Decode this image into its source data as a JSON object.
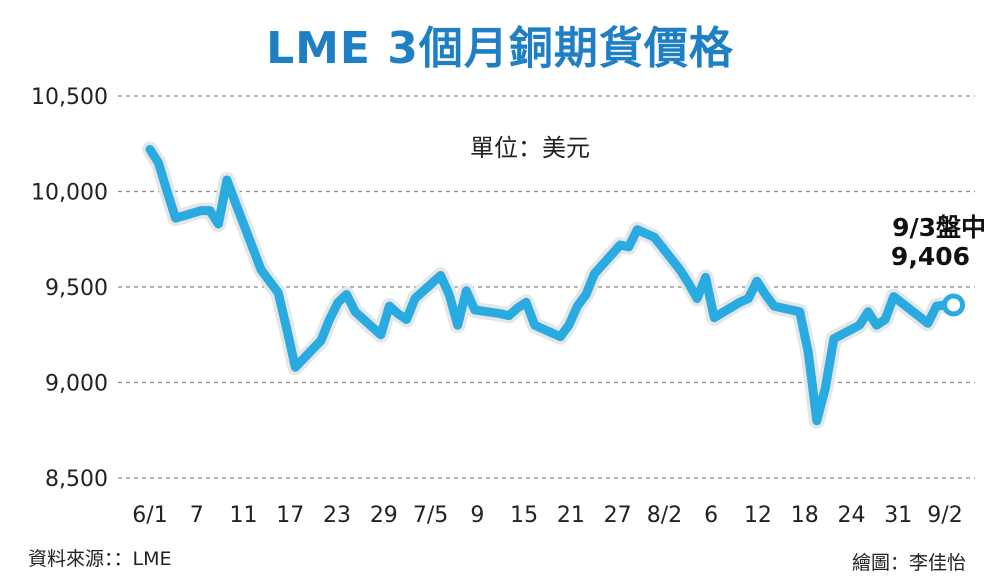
{
  "chart_data": {
    "type": "line",
    "title": "LME 3個月銅期貨價格",
    "unit_label": "單位：美元",
    "y_ticks": [
      "10,500",
      "10,000",
      "9,500",
      "9,000",
      "8,500"
    ],
    "y_tick_values": [
      10500,
      10000,
      9500,
      9000,
      8500
    ],
    "ylim": [
      8500,
      10500
    ],
    "x_ticks": [
      "6/1",
      "7",
      "11",
      "17",
      "23",
      "29",
      "7/5",
      "9",
      "15",
      "21",
      "27",
      "8/2",
      "6",
      "12",
      "18",
      "24",
      "31",
      "9/2"
    ],
    "grid": true,
    "line_color": "#29abe2",
    "series": [
      {
        "x": [
          "2021-06-01",
          "2021-06-02",
          "2021-06-03",
          "2021-06-04",
          "2021-06-07",
          "2021-06-08",
          "2021-06-09",
          "2021-06-10",
          "2021-06-11",
          "2021-06-14",
          "2021-06-15",
          "2021-06-16",
          "2021-06-17",
          "2021-06-18",
          "2021-06-21",
          "2021-06-22",
          "2021-06-23",
          "2021-06-24",
          "2021-06-25",
          "2021-06-28",
          "2021-06-29",
          "2021-06-30",
          "2021-07-01",
          "2021-07-02",
          "2021-07-05",
          "2021-07-06",
          "2021-07-07",
          "2021-07-08",
          "2021-07-09",
          "2021-07-12",
          "2021-07-13",
          "2021-07-14",
          "2021-07-15",
          "2021-07-16",
          "2021-07-19",
          "2021-07-20",
          "2021-07-21",
          "2021-07-22",
          "2021-07-23",
          "2021-07-26",
          "2021-07-27",
          "2021-07-28",
          "2021-07-29",
          "2021-07-30",
          "2021-08-02",
          "2021-08-03",
          "2021-08-04",
          "2021-08-05",
          "2021-08-06",
          "2021-08-09",
          "2021-08-10",
          "2021-08-11",
          "2021-08-12",
          "2021-08-13",
          "2021-08-16",
          "2021-08-17",
          "2021-08-18",
          "2021-08-19",
          "2021-08-20",
          "2021-08-23",
          "2021-08-24",
          "2021-08-25",
          "2021-08-26",
          "2021-08-27",
          "2021-08-31",
          "2021-09-01",
          "2021-09-02",
          "2021-09-03"
        ],
        "values": [
          10220,
          10150,
          10000,
          9860,
          9900,
          9900,
          9830,
          10060,
          9940,
          9590,
          9530,
          9470,
          9280,
          9080,
          9220,
          9330,
          9420,
          9460,
          9370,
          9250,
          9400,
          9360,
          9330,
          9440,
          9560,
          9460,
          9300,
          9480,
          9380,
          9360,
          9350,
          9390,
          9420,
          9300,
          9240,
          9300,
          9400,
          9460,
          9570,
          9720,
          9710,
          9800,
          9780,
          9760,
          9590,
          9520,
          9440,
          9550,
          9340,
          9420,
          9440,
          9530,
          9460,
          9400,
          9370,
          9160,
          8800,
          8970,
          9230,
          9300,
          9370,
          9300,
          9330,
          9450,
          9310,
          9400,
          9406,
          9406
        ]
      }
    ],
    "annotation": {
      "date": "9/3盤中",
      "value": "9,406"
    }
  },
  "footer": {
    "source": "資料來源：：LME",
    "credit": "繪圖：李佳怡"
  }
}
